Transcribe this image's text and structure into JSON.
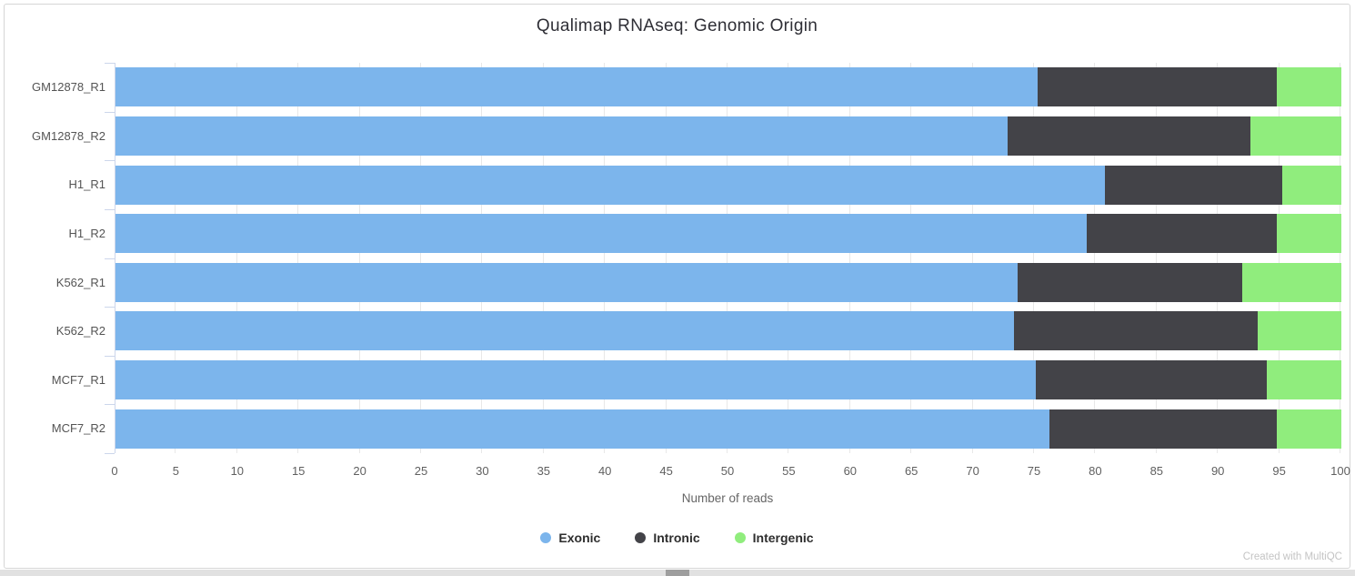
{
  "header": {
    "title": "Qualimap RNAseq: Genomic Origin"
  },
  "chart_data": {
    "type": "bar",
    "orientation": "horizontal",
    "stacked": true,
    "title": "Qualimap RNAseq: Genomic Origin",
    "xlabel": "Number of reads",
    "ylabel": "",
    "xlim": [
      0,
      100
    ],
    "xticks": [
      0,
      5,
      10,
      15,
      20,
      25,
      30,
      35,
      40,
      45,
      50,
      55,
      60,
      65,
      70,
      75,
      80,
      85,
      90,
      95,
      100
    ],
    "grid": true,
    "legend_position": "bottom",
    "categories": [
      "GM12878_R1",
      "GM12878_R2",
      "H1_R1",
      "H1_R2",
      "K562_R1",
      "K562_R2",
      "MCF7_R1",
      "MCF7_R2"
    ],
    "series": [
      {
        "name": "Exonic",
        "color": "#7cb5ec",
        "values": [
          75.2,
          72.8,
          80.7,
          79.2,
          73.6,
          73.3,
          75.1,
          76.2
        ]
      },
      {
        "name": "Intronic",
        "color": "#434348",
        "values": [
          19.5,
          19.8,
          14.5,
          15.5,
          18.3,
          19.9,
          18.8,
          18.5
        ]
      },
      {
        "name": "Intergenic",
        "color": "#90ed7d",
        "values": [
          5.3,
          7.4,
          4.8,
          5.3,
          8.1,
          6.8,
          6.1,
          5.3
        ]
      }
    ]
  },
  "footer": {
    "watermark": "Created with MultiQC"
  },
  "colors": {
    "axis_line": "#ccd6eb",
    "gridline": "#e8e8e8",
    "card_border": "#d6d6d6",
    "scrollbar_track": "#e1e1e1",
    "scrollbar_thumb": "#9e9e9e"
  }
}
